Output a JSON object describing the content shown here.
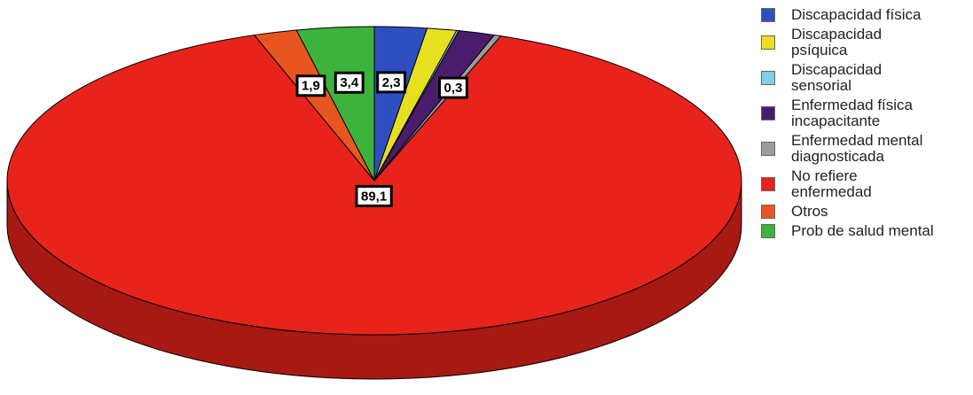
{
  "chart_data": {
    "type": "pie3d",
    "series": [
      {
        "name": "Discapacidad física",
        "color": "#2f4fc0",
        "values": [
          2.3
        ],
        "value_labels": [
          "2,3"
        ]
      },
      {
        "name": "Discapacidad psíquica",
        "color": "#e6e021",
        "values": [
          1.3
        ],
        "value_labels": [
          null
        ]
      },
      {
        "name": "Discapacidad sensorial",
        "color": "#80d0ea",
        "values": [
          0.1
        ],
        "value_labels": [
          null
        ]
      },
      {
        "name": "Enfermedad física incapacitante",
        "color": "#4b1b6c",
        "values": [
          1.6
        ],
        "value_labels": [
          null
        ]
      },
      {
        "name": "Enfermedad mental diagnosticada",
        "color": "#9c9c9c",
        "values": [
          0.3
        ],
        "value_labels": [
          "0,3"
        ]
      },
      {
        "name": "No refiere enfermedad",
        "color": "#e8231b",
        "values": [
          89.1
        ],
        "value_labels": [
          "89,1"
        ]
      },
      {
        "name": "Otros",
        "color": "#e8561f",
        "values": [
          1.9
        ],
        "value_labels": [
          "1,9"
        ]
      },
      {
        "name": "Prob de salud mental",
        "color": "#3cb43c",
        "values": [
          3.4
        ],
        "value_labels": [
          "3,4"
        ]
      }
    ]
  }
}
